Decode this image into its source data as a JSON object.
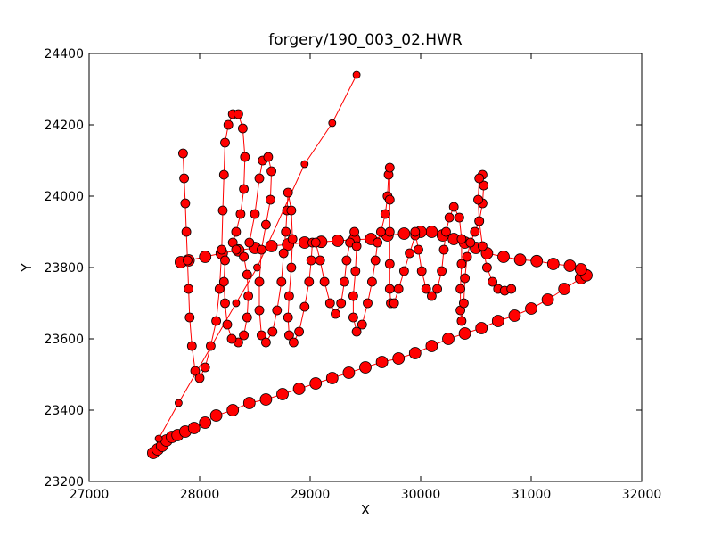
{
  "chart_data": {
    "type": "scatter",
    "title": "forgery/190_003_02.HWR",
    "xlabel": "X",
    "ylabel": "Y",
    "xlim": [
      27000,
      32000
    ],
    "ylim": [
      23200,
      24400
    ],
    "xticks": [
      27000,
      28000,
      29000,
      30000,
      31000,
      32000
    ],
    "yticks": [
      23200,
      23400,
      23600,
      23800,
      24000,
      24200,
      24400
    ],
    "grid": false,
    "legend": "none",
    "colors": {
      "marker_fill": "#ff0000",
      "marker_edge": "#000000",
      "line": "#ff0000"
    },
    "series": [
      {
        "points": [
          [
            27580,
            23280
          ],
          [
            27620,
            23290
          ],
          [
            27660,
            23300
          ],
          [
            27700,
            23315
          ],
          [
            27750,
            23325
          ],
          [
            27800,
            23330
          ],
          [
            27870,
            23340
          ],
          [
            27950,
            23350
          ],
          [
            28050,
            23365
          ],
          [
            28150,
            23385
          ],
          [
            28300,
            23400
          ],
          [
            28450,
            23420
          ],
          [
            28600,
            23430
          ],
          [
            28750,
            23445
          ],
          [
            28900,
            23460
          ],
          [
            29050,
            23475
          ],
          [
            29200,
            23490
          ],
          [
            29350,
            23505
          ],
          [
            29500,
            23520
          ],
          [
            29650,
            23535
          ],
          [
            29800,
            23545
          ],
          [
            29950,
            23560
          ],
          [
            30100,
            23580
          ],
          [
            30250,
            23600
          ],
          [
            30400,
            23615
          ],
          [
            30550,
            23630
          ],
          [
            30700,
            23650
          ],
          [
            30850,
            23665
          ],
          [
            31000,
            23685
          ],
          [
            31150,
            23710
          ],
          [
            31300,
            23740
          ],
          [
            31450,
            23770
          ],
          [
            31500,
            23778
          ],
          [
            31450,
            23795
          ],
          [
            31350,
            23805
          ],
          [
            31200,
            23810
          ],
          [
            31050,
            23818
          ],
          [
            30900,
            23822
          ],
          [
            30750,
            23830
          ],
          [
            30600,
            23840
          ],
          [
            30500,
            23855
          ],
          [
            30400,
            23870
          ],
          [
            30300,
            23880
          ],
          [
            30200,
            23890
          ],
          [
            30100,
            23900
          ],
          [
            30000,
            23900
          ],
          [
            29850,
            23895
          ],
          [
            29700,
            23890
          ],
          [
            29550,
            23880
          ],
          [
            29400,
            23878
          ],
          [
            29250,
            23875
          ],
          [
            29100,
            23872
          ],
          [
            28950,
            23870
          ],
          [
            28800,
            23865
          ],
          [
            28650,
            23860
          ],
          [
            28500,
            23855
          ],
          [
            28350,
            23848
          ],
          [
            28200,
            23840
          ],
          [
            28050,
            23830
          ],
          [
            27900,
            23820
          ],
          [
            27830,
            23815
          ]
        ],
        "markersize": "large"
      },
      {
        "points": [
          [
            27630,
            23320
          ],
          [
            27810,
            23420
          ],
          [
            28330,
            23700
          ],
          [
            28520,
            23800
          ],
          [
            28950,
            24090
          ],
          [
            29200,
            24205
          ],
          [
            29420,
            24340
          ]
        ],
        "markersize": "small"
      },
      {
        "points": [
          [
            27850,
            24120
          ],
          [
            27860,
            24050
          ],
          [
            27870,
            23980
          ],
          [
            27880,
            23900
          ],
          [
            27890,
            23820
          ],
          [
            27900,
            23740
          ],
          [
            27910,
            23660
          ],
          [
            27930,
            23580
          ],
          [
            27960,
            23510
          ],
          [
            28000,
            23490
          ],
          [
            28050,
            23520
          ],
          [
            28100,
            23580
          ],
          [
            28150,
            23650
          ],
          [
            28180,
            23740
          ],
          [
            28200,
            23850
          ],
          [
            28210,
            23960
          ],
          [
            28220,
            24060
          ],
          [
            28230,
            24150
          ],
          [
            28260,
            24200
          ],
          [
            28300,
            24230
          ],
          [
            28350,
            24230
          ],
          [
            28390,
            24190
          ],
          [
            28410,
            24110
          ],
          [
            28400,
            24020
          ],
          [
            28370,
            23950
          ],
          [
            28330,
            23900
          ],
          [
            28300,
            23870
          ],
          [
            28330,
            23850
          ],
          [
            28400,
            23830
          ],
          [
            28430,
            23780
          ],
          [
            28440,
            23720
          ],
          [
            28430,
            23660
          ],
          [
            28400,
            23610
          ],
          [
            28350,
            23590
          ],
          [
            28290,
            23600
          ],
          [
            28250,
            23640
          ],
          [
            28230,
            23700
          ],
          [
            28220,
            23760
          ],
          [
            28230,
            23820
          ]
        ],
        "markersize": "medium"
      },
      {
        "points": [
          [
            28450,
            23870
          ],
          [
            28500,
            23950
          ],
          [
            28540,
            24050
          ],
          [
            28570,
            24100
          ],
          [
            28620,
            24110
          ],
          [
            28650,
            24070
          ],
          [
            28640,
            23990
          ],
          [
            28600,
            23920
          ],
          [
            28560,
            23850
          ],
          [
            28540,
            23760
          ],
          [
            28540,
            23680
          ],
          [
            28560,
            23610
          ],
          [
            28600,
            23590
          ],
          [
            28660,
            23620
          ],
          [
            28700,
            23680
          ],
          [
            28740,
            23760
          ],
          [
            28760,
            23840
          ],
          [
            28780,
            23900
          ],
          [
            28790,
            23960
          ],
          [
            28800,
            24010
          ],
          [
            28830,
            23960
          ],
          [
            28840,
            23880
          ],
          [
            28830,
            23800
          ],
          [
            28810,
            23720
          ],
          [
            28800,
            23660
          ],
          [
            28810,
            23610
          ],
          [
            28850,
            23590
          ],
          [
            28900,
            23620
          ],
          [
            28950,
            23690
          ],
          [
            28990,
            23760
          ],
          [
            29010,
            23820
          ],
          [
            29020,
            23870
          ]
        ],
        "markersize": "medium"
      },
      {
        "points": [
          [
            29050,
            23870
          ],
          [
            29090,
            23820
          ],
          [
            29130,
            23760
          ],
          [
            29180,
            23700
          ],
          [
            29230,
            23670
          ],
          [
            29280,
            23700
          ],
          [
            29310,
            23760
          ],
          [
            29330,
            23820
          ],
          [
            29360,
            23870
          ],
          [
            29400,
            23900
          ],
          [
            29420,
            23860
          ],
          [
            29410,
            23790
          ],
          [
            29390,
            23720
          ],
          [
            29390,
            23660
          ],
          [
            29420,
            23620
          ],
          [
            29470,
            23640
          ],
          [
            29520,
            23700
          ],
          [
            29560,
            23760
          ],
          [
            29590,
            23820
          ],
          [
            29610,
            23870
          ],
          [
            29640,
            23900
          ],
          [
            29680,
            23950
          ],
          [
            29700,
            24000
          ],
          [
            29710,
            24060
          ],
          [
            29720,
            24080
          ],
          [
            29720,
            23990
          ],
          [
            29720,
            23900
          ],
          [
            29720,
            23810
          ],
          [
            29720,
            23740
          ],
          [
            29730,
            23700
          ],
          [
            29760,
            23700
          ],
          [
            29800,
            23740
          ],
          [
            29850,
            23790
          ],
          [
            29900,
            23840
          ],
          [
            29950,
            23890
          ]
        ],
        "markersize": "medium"
      },
      {
        "points": [
          [
            29950,
            23900
          ],
          [
            29980,
            23850
          ],
          [
            30010,
            23790
          ],
          [
            30050,
            23740
          ],
          [
            30100,
            23720
          ],
          [
            30150,
            23740
          ],
          [
            30190,
            23790
          ],
          [
            30210,
            23850
          ],
          [
            30230,
            23900
          ],
          [
            30260,
            23940
          ],
          [
            30300,
            23970
          ],
          [
            30350,
            23940
          ],
          [
            30370,
            23880
          ],
          [
            30370,
            23810
          ],
          [
            30360,
            23740
          ],
          [
            30360,
            23680
          ],
          [
            30370,
            23650
          ],
          [
            30390,
            23700
          ],
          [
            30400,
            23770
          ],
          [
            30420,
            23830
          ],
          [
            30450,
            23870
          ],
          [
            30490,
            23900
          ],
          [
            30530,
            23930
          ],
          [
            30560,
            23980
          ],
          [
            30570,
            24030
          ],
          [
            30560,
            24060
          ],
          [
            30530,
            24050
          ],
          [
            30520,
            23990
          ],
          [
            30530,
            23930
          ],
          [
            30560,
            23860
          ],
          [
            30600,
            23800
          ],
          [
            30650,
            23760
          ],
          [
            30700,
            23740
          ],
          [
            30760,
            23735
          ],
          [
            30820,
            23740
          ]
        ],
        "markersize": "medium"
      }
    ]
  }
}
